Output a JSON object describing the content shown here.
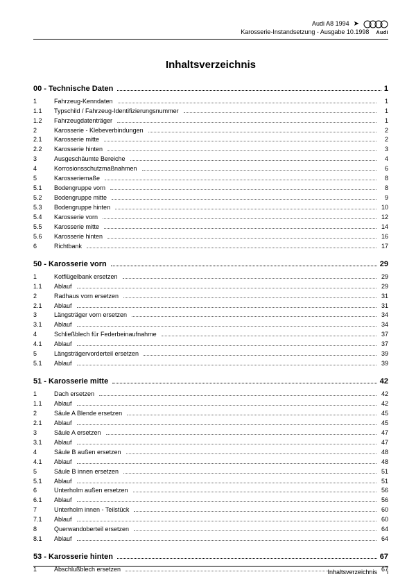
{
  "header": {
    "model": "Audi A8 1994",
    "subtitle": "Karosserie-Instandsetzung - Ausgabe 10.1998",
    "logo_text": "Audi"
  },
  "title": "Inhaltsverzeichnis",
  "sections": [
    {
      "num": "00",
      "label": "Technische Daten",
      "page": "1",
      "entries": [
        {
          "num": "1",
          "label": "Fahrzeug-Kenndaten",
          "page": "1"
        },
        {
          "num": "1.1",
          "label": "Typschild / Fahrzeug-Identifizierungsnummer",
          "page": "1"
        },
        {
          "num": "1.2",
          "label": "Fahrzeugdatenträger",
          "page": "1"
        },
        {
          "num": "2",
          "label": "Karosserie - Klebeverbindungen",
          "page": "2"
        },
        {
          "num": "2.1",
          "label": "Karosserie mitte",
          "page": "2"
        },
        {
          "num": "2.2",
          "label": "Karosserie hinten",
          "page": "3"
        },
        {
          "num": "3",
          "label": "Ausgeschäumte Bereiche",
          "page": "4"
        },
        {
          "num": "4",
          "label": "Korrosionsschutzmaßnahmen",
          "page": "6"
        },
        {
          "num": "5",
          "label": "Karosseriemaße",
          "page": "8"
        },
        {
          "num": "5.1",
          "label": "Bodengruppe vorn",
          "page": "8"
        },
        {
          "num": "5.2",
          "label": "Bodengruppe mitte",
          "page": "9"
        },
        {
          "num": "5.3",
          "label": "Bodengruppe hinten",
          "page": "10"
        },
        {
          "num": "5.4",
          "label": "Karosserie vorn",
          "page": "12"
        },
        {
          "num": "5.5",
          "label": "Karosserie mitte",
          "page": "14"
        },
        {
          "num": "5.6",
          "label": "Karosserie hinten",
          "page": "16"
        },
        {
          "num": "6",
          "label": "Richtbank",
          "page": "17"
        }
      ]
    },
    {
      "num": "50",
      "label": "Karosserie vorn",
      "page": "29",
      "entries": [
        {
          "num": "1",
          "label": "Kotflügelbank ersetzen",
          "page": "29"
        },
        {
          "num": "1.1",
          "label": "Ablauf",
          "page": "29"
        },
        {
          "num": "2",
          "label": "Radhaus vorn ersetzen",
          "page": "31"
        },
        {
          "num": "2.1",
          "label": "Ablauf",
          "page": "31"
        },
        {
          "num": "3",
          "label": "Längsträger vorn ersetzen",
          "page": "34"
        },
        {
          "num": "3.1",
          "label": "Ablauf",
          "page": "34"
        },
        {
          "num": "4",
          "label": "Schließblech für Federbeinaufnahme",
          "page": "37"
        },
        {
          "num": "4.1",
          "label": "Ablauf",
          "page": "37"
        },
        {
          "num": "5",
          "label": "Längsträgervorderteil ersetzen",
          "page": "39"
        },
        {
          "num": "5.1",
          "label": "Ablauf",
          "page": "39"
        }
      ]
    },
    {
      "num": "51",
      "label": "Karosserie mitte",
      "page": "42",
      "entries": [
        {
          "num": "1",
          "label": "Dach ersetzen",
          "page": "42"
        },
        {
          "num": "1.1",
          "label": "Ablauf",
          "page": "42"
        },
        {
          "num": "2",
          "label": "Säule A Blende ersetzen",
          "page": "45"
        },
        {
          "num": "2.1",
          "label": "Ablauf",
          "page": "45"
        },
        {
          "num": "3",
          "label": "Säule A ersetzen",
          "page": "47"
        },
        {
          "num": "3.1",
          "label": "Ablauf",
          "page": "47"
        },
        {
          "num": "4",
          "label": "Säule B außen ersetzen",
          "page": "48"
        },
        {
          "num": "4.1",
          "label": "Ablauf",
          "page": "48"
        },
        {
          "num": "5",
          "label": "Säule B innen ersetzen",
          "page": "51"
        },
        {
          "num": "5.1",
          "label": "Ablauf",
          "page": "51"
        },
        {
          "num": "6",
          "label": "Unterholm außen ersetzen",
          "page": "56"
        },
        {
          "num": "6.1",
          "label": "Ablauf",
          "page": "56"
        },
        {
          "num": "7",
          "label": "Unterholm innen - Teilstück",
          "page": "60"
        },
        {
          "num": "7.1",
          "label": "Ablauf",
          "page": "60"
        },
        {
          "num": "8",
          "label": "Querwandoberteil ersetzen",
          "page": "64"
        },
        {
          "num": "8.1",
          "label": "Ablauf",
          "page": "64"
        }
      ]
    },
    {
      "num": "53",
      "label": "Karosserie hinten",
      "page": "67",
      "entries": [
        {
          "num": "1",
          "label": "Abschlußblech ersetzen",
          "page": "67"
        }
      ]
    }
  ],
  "footer": {
    "label": "Inhaltsverzeichnis",
    "page": "i"
  }
}
